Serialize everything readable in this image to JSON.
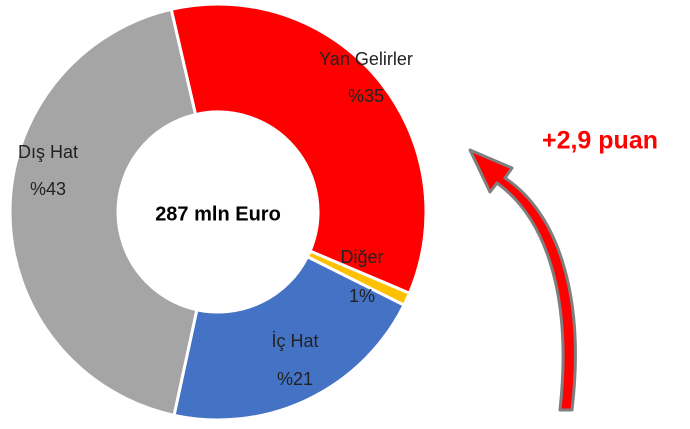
{
  "chart_data": {
    "type": "donut",
    "center_label": "287 mln Euro",
    "annotation": "+2,9 puan",
    "categories": [
      "Yan Gelirler",
      "Diğer",
      "İç Hat",
      "Dış Hat"
    ],
    "values": [
      35,
      1,
      21,
      43
    ],
    "value_labels": [
      "%35",
      "1%",
      "%21",
      "%43"
    ],
    "colors": [
      "#ff0000",
      "#ffc000",
      "#4472c4",
      "#a5a5a5"
    ]
  }
}
